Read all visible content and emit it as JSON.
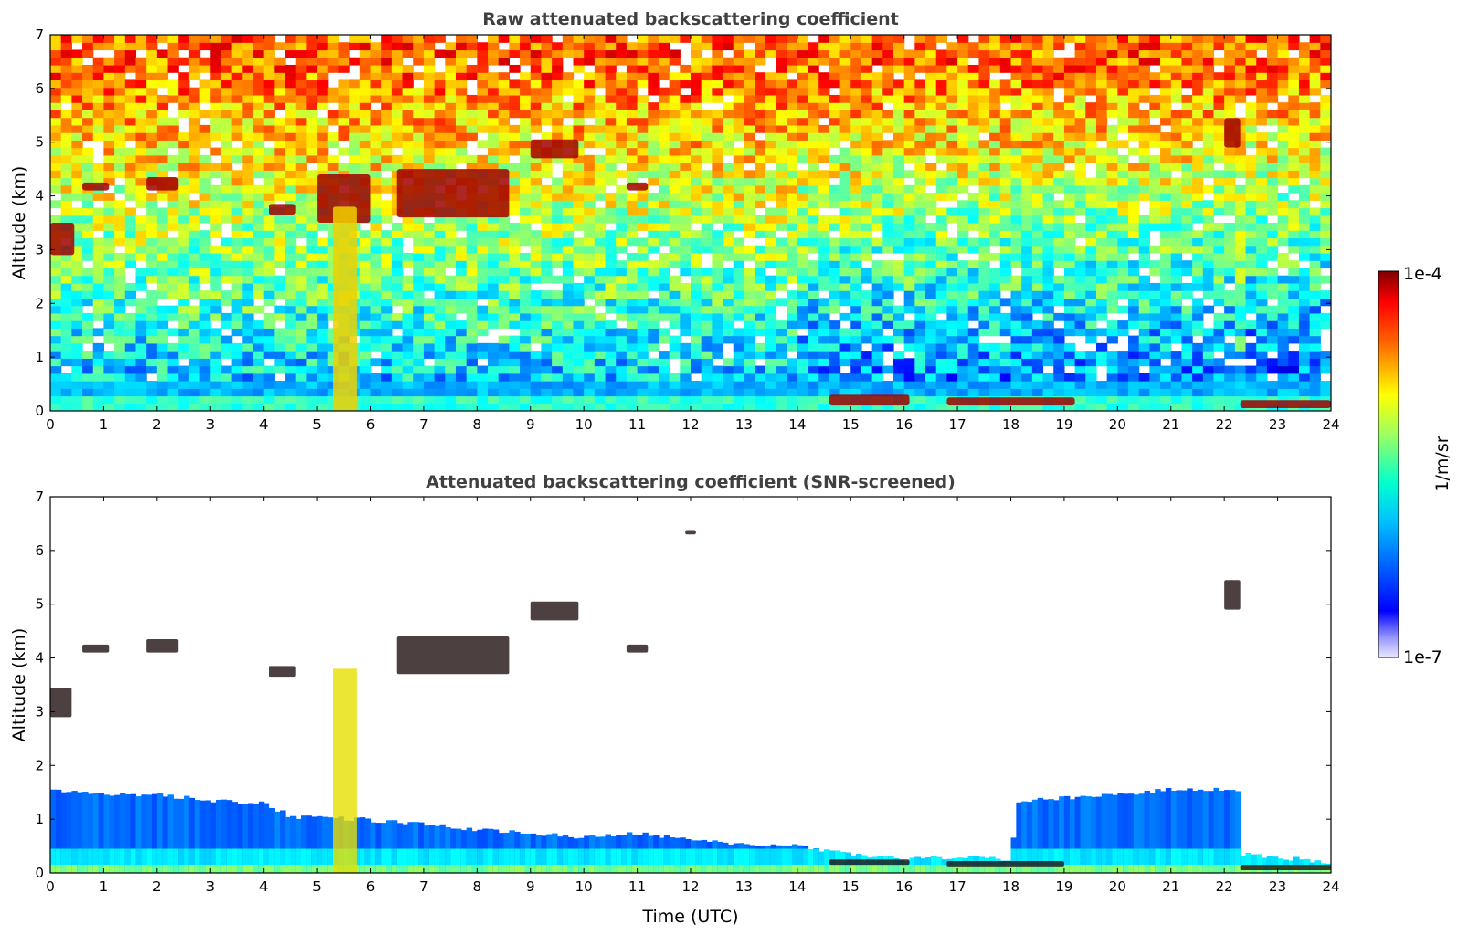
{
  "chart_data": [
    {
      "type": "heatmap",
      "title": "Raw attenuated backscattering coefficient",
      "xlabel": "",
      "ylabel": "Altitude (km)",
      "xlim": [
        0,
        24
      ],
      "ylim": [
        0,
        7
      ],
      "xticks": [
        0,
        1,
        2,
        3,
        4,
        5,
        6,
        7,
        8,
        9,
        10,
        11,
        12,
        13,
        14,
        15,
        16,
        17,
        18,
        19,
        20,
        21,
        22,
        23,
        24
      ],
      "yticks": [
        0,
        1,
        2,
        3,
        4,
        5,
        6,
        7
      ],
      "colorscale": "jet",
      "features": [
        {
          "kind": "cloud",
          "t": [
            0.6,
            1.1
          ],
          "alt": [
            4.1,
            4.25
          ]
        },
        {
          "kind": "cloud",
          "t": [
            1.8,
            2.4
          ],
          "alt": [
            4.1,
            4.35
          ]
        },
        {
          "kind": "cloud",
          "t": [
            0.0,
            0.45
          ],
          "alt": [
            2.9,
            3.5
          ]
        },
        {
          "kind": "cloud",
          "t": [
            4.1,
            4.6
          ],
          "alt": [
            3.65,
            3.85
          ]
        },
        {
          "kind": "cloud",
          "t": [
            5.0,
            6.0
          ],
          "alt": [
            3.5,
            4.4
          ]
        },
        {
          "kind": "cloud",
          "t": [
            6.5,
            8.6
          ],
          "alt": [
            3.6,
            4.5
          ]
        },
        {
          "kind": "cloud",
          "t": [
            9.0,
            9.9
          ],
          "alt": [
            4.7,
            5.05
          ]
        },
        {
          "kind": "cloud",
          "t": [
            10.8,
            11.2
          ],
          "alt": [
            4.1,
            4.25
          ]
        },
        {
          "kind": "cloud",
          "t": [
            22.0,
            22.3
          ],
          "alt": [
            4.9,
            5.45
          ]
        },
        {
          "kind": "precip",
          "t": [
            5.3,
            5.75
          ],
          "alt": [
            0.0,
            3.8
          ]
        },
        {
          "kind": "low-cloud",
          "t": [
            14.6,
            16.1
          ],
          "alt": [
            0.1,
            0.3
          ]
        },
        {
          "kind": "low-cloud",
          "t": [
            16.8,
            19.2
          ],
          "alt": [
            0.1,
            0.25
          ]
        },
        {
          "kind": "low-cloud",
          "t": [
            22.3,
            24.0
          ],
          "alt": [
            0.05,
            0.2
          ]
        }
      ]
    },
    {
      "type": "heatmap",
      "title": "Attenuated backscattering coefficient (SNR-screened)",
      "xlabel": "Time (UTC)",
      "ylabel": "Altitude (km)",
      "xlim": [
        0,
        24
      ],
      "ylim": [
        0,
        7
      ],
      "xticks": [
        0,
        1,
        2,
        3,
        4,
        5,
        6,
        7,
        8,
        9,
        10,
        11,
        12,
        13,
        14,
        15,
        16,
        17,
        18,
        19,
        20,
        21,
        22,
        23,
        24
      ],
      "yticks": [
        0,
        1,
        2,
        3,
        4,
        5,
        6,
        7
      ],
      "colorscale": "jet",
      "boundary_layer_top_km": [
        [
          0,
          1.55
        ],
        [
          1,
          1.45
        ],
        [
          2,
          1.45
        ],
        [
          3,
          1.35
        ],
        [
          4,
          1.3
        ],
        [
          4.5,
          1.05
        ],
        [
          5.8,
          1.0
        ],
        [
          7,
          0.9
        ],
        [
          8,
          0.8
        ],
        [
          9,
          0.75
        ],
        [
          10,
          0.65
        ],
        [
          11,
          0.75
        ],
        [
          12,
          0.6
        ],
        [
          13,
          0.55
        ],
        [
          14,
          0.5
        ],
        [
          15,
          0.35
        ],
        [
          16,
          0.25
        ],
        [
          17,
          0.3
        ],
        [
          18,
          0.25
        ],
        [
          18.15,
          1.35
        ],
        [
          19,
          1.4
        ],
        [
          20,
          1.45
        ],
        [
          21,
          1.55
        ],
        [
          22.25,
          1.55
        ],
        [
          22.35,
          0.35
        ],
        [
          24,
          0.2
        ]
      ]
    }
  ],
  "colorbar": {
    "label": "1/m/sr",
    "max_label": "1e-4",
    "min_label": "1e-7",
    "range": [
      1e-07,
      0.0001
    ],
    "scale": "log"
  }
}
